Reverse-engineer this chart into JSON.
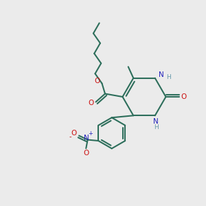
{
  "bg_color": "#ebebeb",
  "bond_color": "#2d6e5b",
  "bond_width": 1.5,
  "N_color": "#2020bb",
  "O_color": "#cc1111",
  "fig_size": [
    3.0,
    3.0
  ],
  "dpi": 100,
  "xlim": [
    0,
    10
  ],
  "ylim": [
    0,
    10
  ]
}
